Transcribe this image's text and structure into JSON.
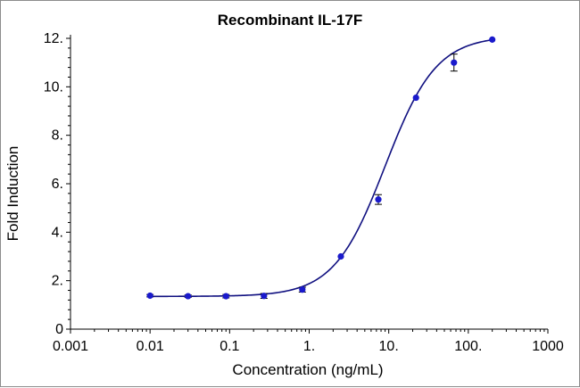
{
  "chart_data": {
    "type": "scatter",
    "title": "Recombinant IL-17F",
    "xlabel": "Concentration (ng/mL)",
    "ylabel": "Fold Induction",
    "x_scale": "log",
    "xlim": [
      0.001,
      1000
    ],
    "ylim": [
      0,
      12
    ],
    "x_ticks": [
      0.001,
      0.01,
      0.1,
      1,
      10,
      100,
      1000
    ],
    "x_tick_labels": [
      "0.001",
      "0.01",
      "0.1",
      "1.",
      "10.",
      "100.",
      "1000"
    ],
    "y_ticks": [
      0,
      2,
      4,
      6,
      8,
      10,
      12
    ],
    "y_tick_labels": [
      "0",
      "2.",
      "4.",
      "6.",
      "8.",
      "10.",
      "12."
    ],
    "grid": false,
    "colors": {
      "points": "#1a1acc",
      "curve": "#101080",
      "error_bars": "#000000"
    },
    "series": [
      {
        "points": [
          {
            "x": 0.01,
            "y": 1.38,
            "err": 0.05
          },
          {
            "x": 0.03,
            "y": 1.36,
            "err": 0.05
          },
          {
            "x": 0.09,
            "y": 1.36,
            "err": 0.07
          },
          {
            "x": 0.27,
            "y": 1.37,
            "err": 0.1
          },
          {
            "x": 0.82,
            "y": 1.63,
            "err": 0.1
          },
          {
            "x": 2.5,
            "y": 3.0,
            "err": 0.0
          },
          {
            "x": 7.4,
            "y": 5.35,
            "err": 0.2
          },
          {
            "x": 22.0,
            "y": 9.55,
            "err": 0.0
          },
          {
            "x": 66.0,
            "y": 11.0,
            "err": 0.35
          },
          {
            "x": 200.0,
            "y": 11.95,
            "err": 0.0
          }
        ],
        "fit": {
          "model": "4PL",
          "bottom": 1.35,
          "top": 12.1,
          "ec50": 9.0,
          "hill": 1.35
        }
      }
    ]
  }
}
